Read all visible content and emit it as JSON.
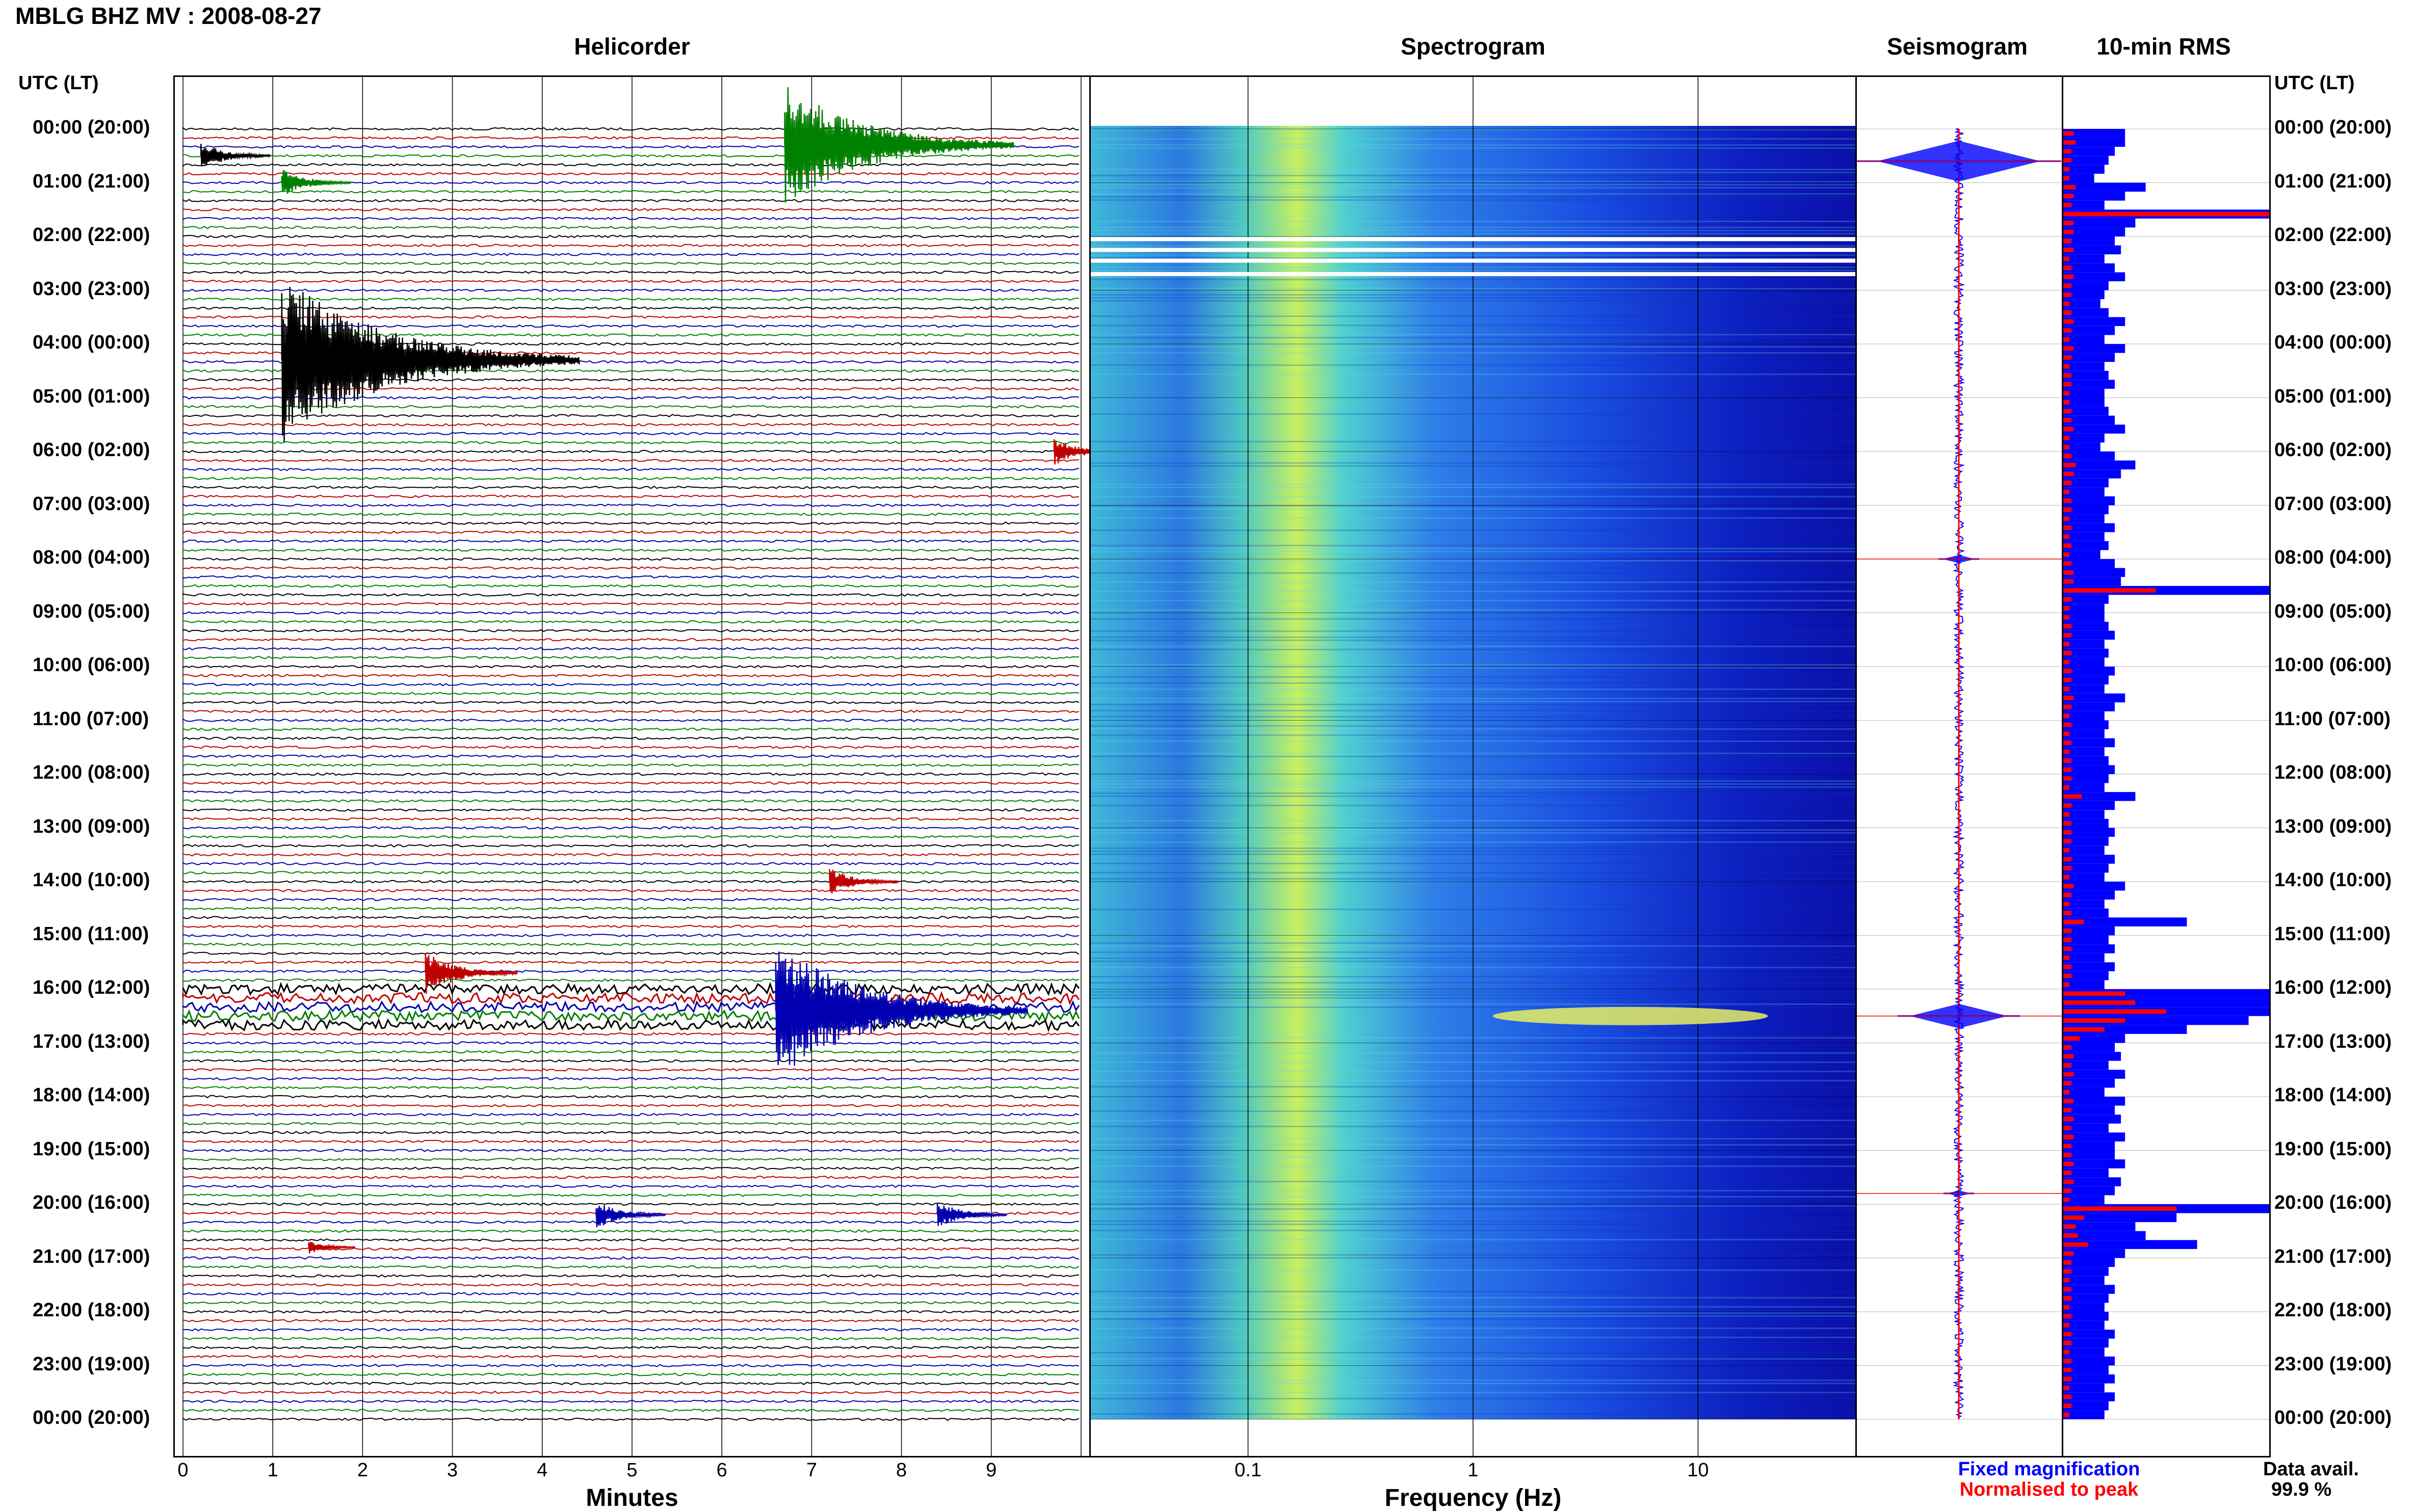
{
  "header": {
    "title": "MBLG BHZ MV : 2008-08-27"
  },
  "panels": {
    "helicorder": "Helicorder",
    "spectrogram": "Spectrogram",
    "seismogram": "Seismogram",
    "rms": "10-min RMS"
  },
  "time_axis": {
    "label_left": "UTC (LT)",
    "label_right": "UTC (LT)",
    "rows": [
      "00:00 (20:00)",
      "01:00 (21:00)",
      "02:00 (22:00)",
      "03:00 (23:00)",
      "04:00 (00:00)",
      "05:00 (01:00)",
      "06:00 (02:00)",
      "07:00 (03:00)",
      "08:00 (04:00)",
      "09:00 (05:00)",
      "10:00 (06:00)",
      "11:00 (07:00)",
      "12:00 (08:00)",
      "13:00 (09:00)",
      "14:00 (10:00)",
      "15:00 (11:00)",
      "16:00 (12:00)",
      "17:00 (13:00)",
      "18:00 (14:00)",
      "19:00 (15:00)",
      "20:00 (16:00)",
      "21:00 (17:00)",
      "22:00 (18:00)",
      "23:00 (19:00)",
      "00:00 (20:00)"
    ]
  },
  "helicorder_axis": {
    "ticks": [
      "0",
      "1",
      "2",
      "3",
      "4",
      "5",
      "6",
      "7",
      "8",
      "9"
    ],
    "xlabel": "Minutes"
  },
  "spectrogram_axis": {
    "ticks": [
      "0.1",
      "1",
      "10"
    ],
    "xlabel": "Frequency (Hz)"
  },
  "legend": {
    "fixed": "Fixed magnification",
    "normalised": "Normalised to peak",
    "fixed_color": "#0000ff",
    "normalised_color": "#ff0000"
  },
  "data_avail": {
    "label": "Data avail.",
    "value": "99.9 %"
  },
  "chart_data": {
    "type": "helicorder",
    "trace_colors": [
      "#000000",
      "#c00000",
      "#0000b0",
      "#008000"
    ],
    "helicorder": {
      "xlim": [
        0,
        10
      ],
      "lines_per_hour": 6,
      "events": [
        {
          "hour": 0.3,
          "minute": 6.7,
          "amp": 9,
          "color": "#008000"
        },
        {
          "hour": 0.5,
          "minute": 0.2,
          "amp": 2,
          "color": "#000000"
        },
        {
          "hour": 1.0,
          "minute": 1.1,
          "amp": 2,
          "color": "#008000"
        },
        {
          "hour": 4.3,
          "minute": 1.1,
          "amp": 12,
          "color": "#000000"
        },
        {
          "hour": 6.0,
          "minute": 9.7,
          "amp": 2,
          "color": "#c00000"
        },
        {
          "hour": 14.0,
          "minute": 7.2,
          "amp": 2,
          "color": "#c00000"
        },
        {
          "hour": 15.7,
          "minute": 2.7,
          "amp": 3,
          "color": "#c00000"
        },
        {
          "hour": 16.4,
          "minute": 6.6,
          "amp": 10,
          "color": "#0000b0"
        },
        {
          "hour": 20.2,
          "minute": 4.6,
          "amp": 2,
          "color": "#0000b0"
        },
        {
          "hour": 20.2,
          "minute": 8.4,
          "amp": 2,
          "color": "#0000b0"
        },
        {
          "hour": 20.8,
          "minute": 1.4,
          "amp": 1,
          "color": "#c00000"
        }
      ]
    },
    "spectrogram": {
      "xscale": "log",
      "xlim": [
        0.02,
        50
      ],
      "ylim_hours": [
        0,
        24
      ],
      "gaps_hours": [
        2.05,
        2.25,
        2.45,
        2.7
      ]
    },
    "seismogram": {
      "fixed_color": "#0000ff",
      "normalised_color": "#ff0000",
      "events": [
        {
          "hour": 0.6,
          "amp": 1.0
        },
        {
          "hour": 8.0,
          "amp": 0.2
        },
        {
          "hour": 16.5,
          "amp": 0.6
        },
        {
          "hour": 19.8,
          "amp": 0.15
        }
      ]
    },
    "rms": {
      "bins_per_hour": 6,
      "fixed_color": "#0000ff",
      "normalised_color": "#ff0000",
      "fixed": [
        0.3,
        0.3,
        0.25,
        0.22,
        0.2,
        0.15,
        0.4,
        0.3,
        0.2,
        1.0,
        0.35,
        0.3,
        0.25,
        0.28,
        0.2,
        0.25,
        0.3,
        0.22,
        0.2,
        0.18,
        0.22,
        0.3,
        0.25,
        0.2,
        0.3,
        0.25,
        0.2,
        0.22,
        0.25,
        0.2,
        0.2,
        0.22,
        0.25,
        0.3,
        0.2,
        0.18,
        0.25,
        0.35,
        0.28,
        0.22,
        0.2,
        0.25,
        0.22,
        0.2,
        0.25,
        0.2,
        0.22,
        0.18,
        0.25,
        0.3,
        0.28,
        1.0,
        0.22,
        0.2,
        0.2,
        0.22,
        0.25,
        0.2,
        0.22,
        0.2,
        0.25,
        0.22,
        0.2,
        0.3,
        0.25,
        0.2,
        0.22,
        0.2,
        0.25,
        0.2,
        0.22,
        0.25,
        0.22,
        0.2,
        0.35,
        0.25,
        0.2,
        0.22,
        0.25,
        0.22,
        0.2,
        0.25,
        0.22,
        0.2,
        0.3,
        0.25,
        0.2,
        0.22,
        0.6,
        0.25,
        0.22,
        0.25,
        0.2,
        0.25,
        0.22,
        0.2,
        1.0,
        1.0,
        1.0,
        0.9,
        0.6,
        0.3,
        0.25,
        0.28,
        0.22,
        0.3,
        0.25,
        0.2,
        0.3,
        0.25,
        0.28,
        0.22,
        0.3,
        0.25,
        0.25,
        0.3,
        0.22,
        0.28,
        0.25,
        0.2,
        1.0,
        0.55,
        0.35,
        0.4,
        0.65,
        0.3,
        0.25,
        0.22,
        0.2,
        0.25,
        0.22,
        0.2,
        0.22,
        0.2,
        0.25,
        0.22,
        0.2,
        0.25,
        0.22,
        0.25,
        0.2,
        0.25,
        0.22,
        0.2
      ],
      "normalised": [
        0.05,
        0.06,
        0.04,
        0.04,
        0.03,
        0.03,
        0.06,
        0.05,
        0.04,
        1.0,
        0.05,
        0.05,
        0.04,
        0.05,
        0.03,
        0.04,
        0.05,
        0.04,
        0.04,
        0.03,
        0.04,
        0.05,
        0.04,
        0.03,
        0.05,
        0.04,
        0.03,
        0.04,
        0.04,
        0.03,
        0.03,
        0.04,
        0.04,
        0.05,
        0.03,
        0.03,
        0.04,
        0.06,
        0.05,
        0.04,
        0.03,
        0.04,
        0.04,
        0.03,
        0.04,
        0.03,
        0.04,
        0.03,
        0.04,
        0.05,
        0.05,
        0.45,
        0.04,
        0.03,
        0.03,
        0.04,
        0.04,
        0.03,
        0.04,
        0.03,
        0.04,
        0.04,
        0.03,
        0.05,
        0.04,
        0.03,
        0.04,
        0.03,
        0.04,
        0.03,
        0.04,
        0.04,
        0.04,
        0.03,
        0.09,
        0.04,
        0.03,
        0.04,
        0.04,
        0.04,
        0.03,
        0.04,
        0.04,
        0.03,
        0.05,
        0.04,
        0.03,
        0.04,
        0.1,
        0.04,
        0.04,
        0.04,
        0.03,
        0.04,
        0.04,
        0.03,
        0.3,
        0.35,
        0.5,
        0.3,
        0.2,
        0.08,
        0.04,
        0.05,
        0.04,
        0.05,
        0.04,
        0.03,
        0.05,
        0.04,
        0.05,
        0.04,
        0.05,
        0.04,
        0.04,
        0.05,
        0.04,
        0.05,
        0.04,
        0.03,
        0.55,
        0.1,
        0.06,
        0.07,
        0.12,
        0.05,
        0.04,
        0.04,
        0.03,
        0.04,
        0.04,
        0.03,
        0.04,
        0.03,
        0.04,
        0.04,
        0.03,
        0.04,
        0.04,
        0.04,
        0.03,
        0.04,
        0.04,
        0.03
      ]
    }
  }
}
